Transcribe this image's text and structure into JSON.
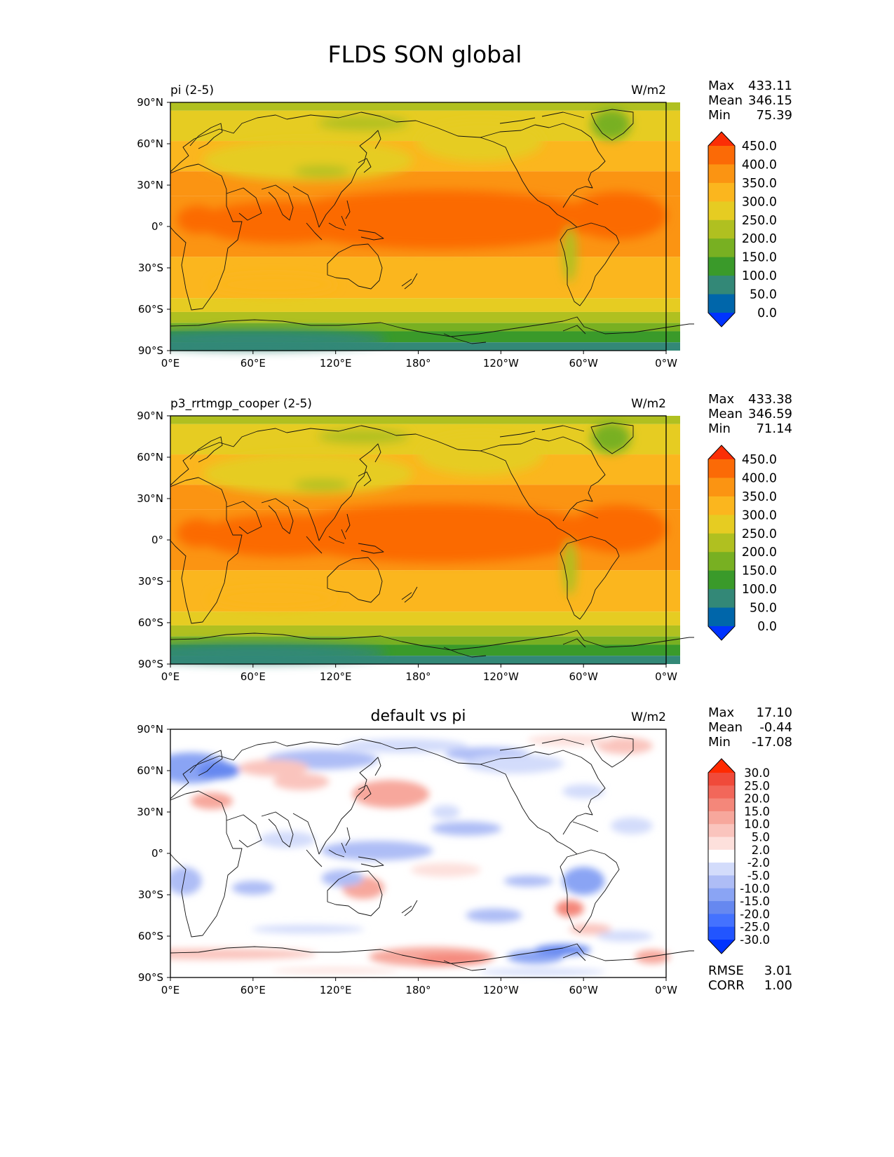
{
  "figure": {
    "title": "FLDS SON global"
  },
  "x_ticks": [
    "0°E",
    "60°E",
    "120°E",
    "180°",
    "120°W",
    "60°W",
    "0°W"
  ],
  "y_ticks": [
    "90°N",
    "60°N",
    "30°N",
    "0°",
    "30°S",
    "60°S",
    "90°S"
  ],
  "stat_labels": {
    "max": "Max",
    "mean": "Mean",
    "min": "Min",
    "rmse": "RMSE",
    "corr": "CORR"
  },
  "colors": {
    "abs_levels": [
      "#0033ff",
      "#0066aa",
      "#338877",
      "#3a9a2a",
      "#78b022",
      "#b0c020",
      "#e6cc22",
      "#fbb61e",
      "#fb9412",
      "#fb6a06",
      "#fb2e06"
    ],
    "diff_levels": [
      "#0033ff",
      "#2255ff",
      "#4472ff",
      "#6688f0",
      "#8aa4f4",
      "#aebdf6",
      "#d3dcfb",
      "#ffffff",
      "#fde0dc",
      "#fac4bd",
      "#f7a79c",
      "#f4877a",
      "#f2675a",
      "#f04a3a",
      "#ff2a00"
    ]
  },
  "chart_data": [
    {
      "type": "heatmap",
      "title": "pi (2-5)",
      "units": "W/m2",
      "stats": {
        "max": "433.11",
        "mean": "346.15",
        "min": "75.39"
      },
      "colorbar": {
        "labels": [
          "450.0",
          "400.0",
          "350.0",
          "300.0",
          "250.0",
          "200.0",
          "150.0",
          "100.0",
          "50.0",
          "0.0"
        ],
        "extend": "both"
      },
      "xlim": [
        0,
        360
      ],
      "ylim": [
        -90,
        90
      ]
    },
    {
      "type": "heatmap",
      "title": "p3_rrtmgp_cooper (2-5)",
      "units": "W/m2",
      "stats": {
        "max": "433.38",
        "mean": "346.59",
        "min": "71.14"
      },
      "colorbar": {
        "labels": [
          "450.0",
          "400.0",
          "350.0",
          "300.0",
          "250.0",
          "200.0",
          "150.0",
          "100.0",
          "50.0",
          "0.0"
        ],
        "extend": "both"
      },
      "xlim": [
        0,
        360
      ],
      "ylim": [
        -90,
        90
      ]
    },
    {
      "type": "heatmap",
      "title": "default vs pi",
      "units": "W/m2",
      "stats": {
        "max": "17.10",
        "mean": "-0.44",
        "min": "-17.08",
        "rmse": "3.01",
        "corr": "1.00"
      },
      "colorbar": {
        "labels": [
          "30.0",
          "25.0",
          "20.0",
          "15.0",
          "10.0",
          "5.0",
          "2.0",
          "-2.0",
          "-5.0",
          "-10.0",
          "-15.0",
          "-20.0",
          "-25.0",
          "-30.0"
        ],
        "extend": "both"
      },
      "xlim": [
        0,
        360
      ],
      "ylim": [
        -90,
        90
      ]
    }
  ]
}
